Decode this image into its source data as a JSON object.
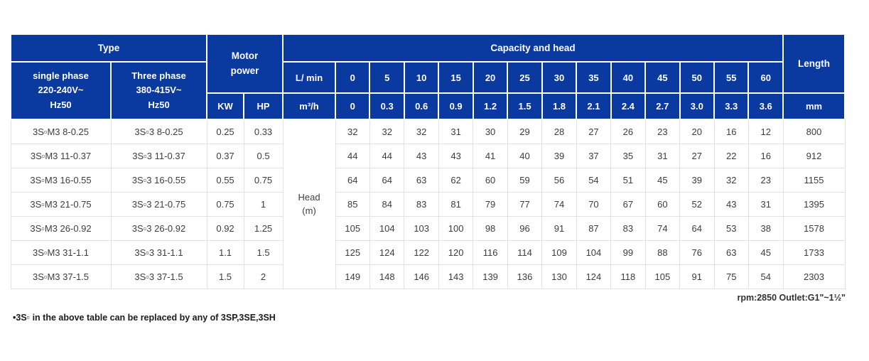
{
  "colors": {
    "header_blue": "#0a3aa0",
    "header_text": "#ffffff",
    "body_text": "#3d3d3d",
    "grid_line": "#e2e2e2"
  },
  "header": {
    "type": "Type",
    "single_phase": "single phase\n220-240V~\nHz50",
    "three_phase": "Three phase\n380-415V~\nHz50",
    "motor_power": "Motor\npower",
    "kw": "KW",
    "hp": "HP",
    "capacity_and_head": "Capacity and head",
    "flow_lmin_label": "L/ min",
    "flow_m3h_label": "m³/h",
    "flow_lmin_values": [
      "0",
      "5",
      "10",
      "15",
      "20",
      "25",
      "30",
      "35",
      "40",
      "45",
      "50",
      "55",
      "60"
    ],
    "flow_m3h_values": [
      "0",
      "0.3",
      "0.6",
      "0.9",
      "1.2",
      "1.5",
      "1.8",
      "2.1",
      "2.4",
      "2.7",
      "3.0",
      "3.3",
      "3.6"
    ],
    "length": "Length",
    "length_unit": "mm"
  },
  "body": {
    "head_label": "Head\n(m)",
    "rows": [
      {
        "single_phase": "3S▫M3 8-0.25",
        "three_phase": "3S▫3 8-0.25",
        "kw": "0.25",
        "hp": "0.33",
        "head_values": [
          "32",
          "32",
          "32",
          "31",
          "30",
          "29",
          "28",
          "27",
          "26",
          "23",
          "20",
          "16",
          "12"
        ],
        "length": "800"
      },
      {
        "single_phase": "3S▫M3 11-0.37",
        "three_phase": "3S▫3 11-0.37",
        "kw": "0.37",
        "hp": "0.5",
        "head_values": [
          "44",
          "44",
          "43",
          "43",
          "41",
          "40",
          "39",
          "37",
          "35",
          "31",
          "27",
          "22",
          "16"
        ],
        "length": "912"
      },
      {
        "single_phase": "3S▫M3 16-0.55",
        "three_phase": "3S▫3 16-0.55",
        "kw": "0.55",
        "hp": "0.75",
        "head_values": [
          "64",
          "64",
          "63",
          "62",
          "60",
          "59",
          "56",
          "54",
          "51",
          "45",
          "39",
          "32",
          "23"
        ],
        "length": "1155"
      },
      {
        "single_phase": "3S▫M3 21-0.75",
        "three_phase": "3S▫3 21-0.75",
        "kw": "0.75",
        "hp": "1",
        "head_values": [
          "85",
          "84",
          "83",
          "81",
          "79",
          "77",
          "74",
          "70",
          "67",
          "60",
          "52",
          "43",
          "31"
        ],
        "length": "1395"
      },
      {
        "single_phase": "3S▫M3 26-0.92",
        "three_phase": "3S▫3 26-0.92",
        "kw": "0.92",
        "hp": "1.25",
        "head_values": [
          "105",
          "104",
          "103",
          "100",
          "98",
          "96",
          "91",
          "87",
          "83",
          "74",
          "64",
          "53",
          "38"
        ],
        "length": "1578"
      },
      {
        "single_phase": "3S▫M3 31-1.1",
        "three_phase": "3S▫3 31-1.1",
        "kw": "1.1",
        "hp": "1.5",
        "head_values": [
          "125",
          "124",
          "122",
          "120",
          "116",
          "114",
          "109",
          "104",
          "99",
          "88",
          "76",
          "63",
          "45"
        ],
        "length": "1733"
      },
      {
        "single_phase": "3S▫M3 37-1.5",
        "three_phase": "3S▫3 37-1.5",
        "kw": "1.5",
        "hp": "2",
        "head_values": [
          "149",
          "148",
          "146",
          "143",
          "139",
          "136",
          "130",
          "124",
          "118",
          "105",
          "91",
          "75",
          "54"
        ],
        "length": "2303"
      }
    ]
  },
  "notes": {
    "rpm_outlet": "rpm:2850 Outlet:G1\"~1½\"",
    "replacement": "•3S▫ in the above table can be replaced by any of 3SP,3SE,3SH"
  }
}
